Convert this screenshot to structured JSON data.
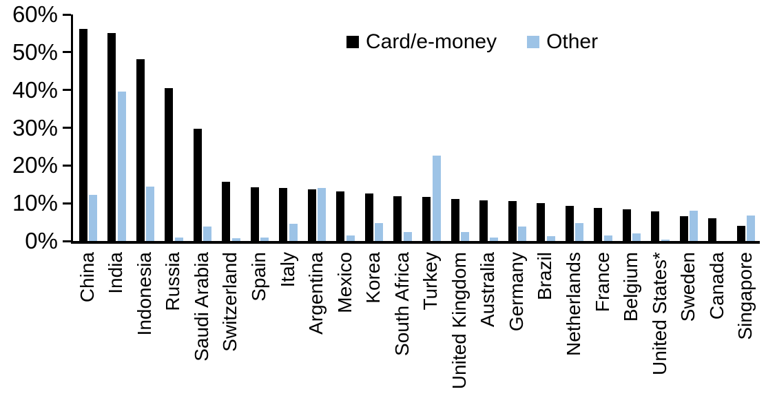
{
  "chart_data": {
    "type": "bar",
    "title": "",
    "xlabel": "",
    "ylabel": "",
    "ylim": [
      0,
      60
    ],
    "ytick_step": 10,
    "ytick_labels_top_to_bottom": [
      "60%",
      "50%",
      "40%",
      "30%",
      "20%",
      "10%",
      "0%"
    ],
    "grid": false,
    "legend_position": "top-center",
    "background": "#FFFFFF",
    "axis_color": "#000000",
    "categories": [
      "China",
      "India",
      "Indonesia",
      "Russia",
      "Saudi Arabia",
      "Switzerland",
      "Spain",
      "Italy",
      "Argentina",
      "Mexico",
      "Korea",
      "South Africa",
      "Turkey",
      "United Kingdom",
      "Australia",
      "Germany",
      "Brazil",
      "Netherlands",
      "France",
      "Belgium",
      "United States*",
      "Sweden",
      "Canada",
      "Singapore"
    ],
    "series": [
      {
        "name": "Card/e-money",
        "color": "#000000",
        "values": [
          56.2,
          55.0,
          48.2,
          40.4,
          29.8,
          15.7,
          14.2,
          14.1,
          13.6,
          13.1,
          12.5,
          11.9,
          11.7,
          11.2,
          10.8,
          10.6,
          10.0,
          9.3,
          8.8,
          8.3,
          7.9,
          6.5,
          6.0,
          4.0
        ]
      },
      {
        "name": "Other",
        "color": "#9DC3E6",
        "values": [
          12.3,
          39.6,
          14.4,
          0.9,
          3.8,
          0.7,
          1.0,
          4.6,
          14.1,
          1.5,
          4.7,
          2.4,
          22.6,
          2.4,
          1.0,
          3.9,
          1.2,
          4.8,
          1.5,
          2.0,
          0.3,
          8.1,
          0.0,
          6.7
        ]
      }
    ]
  }
}
